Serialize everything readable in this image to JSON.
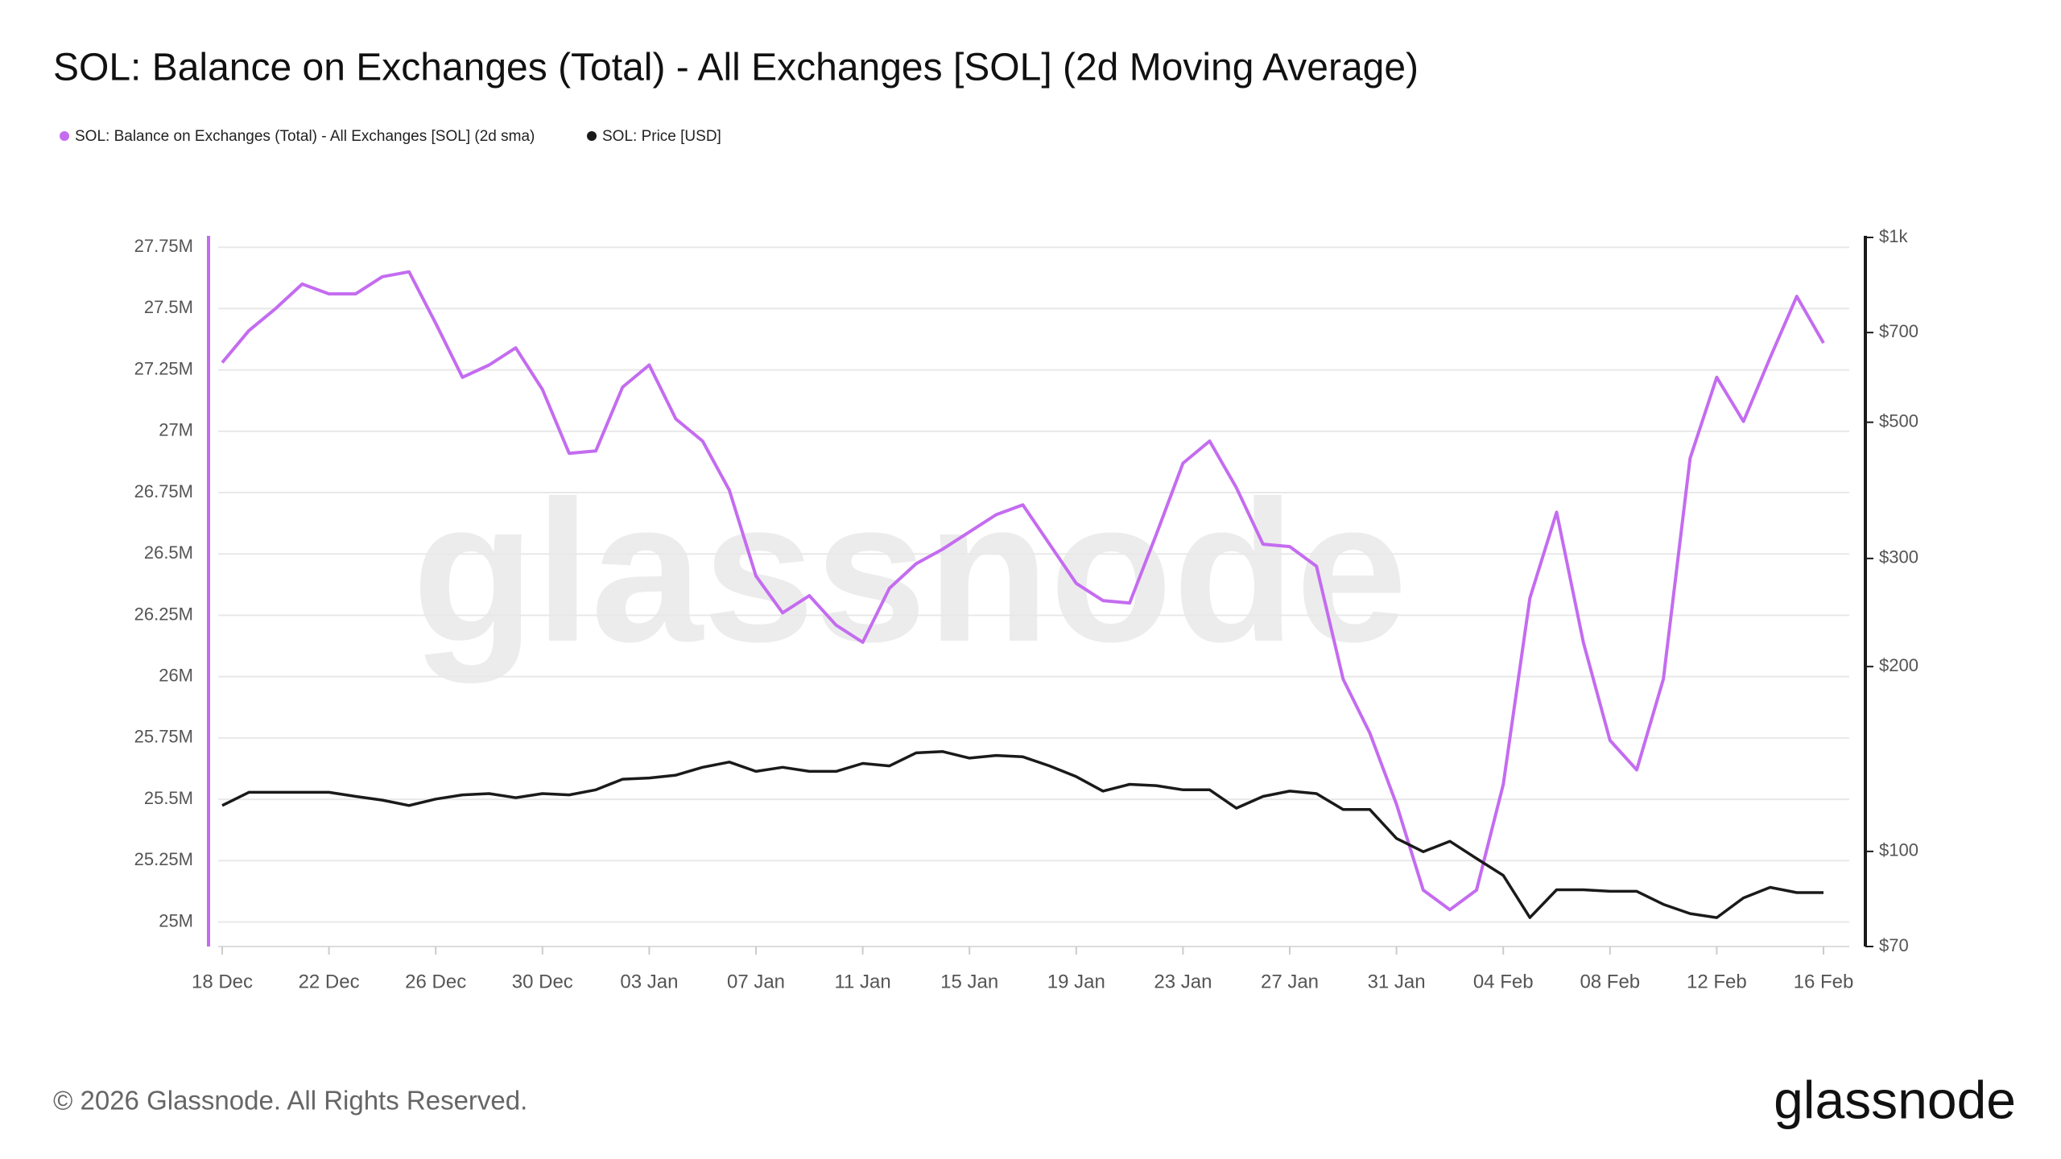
{
  "chart_data": {
    "type": "line",
    "title": "SOL: Balance on Exchanges (Total) - All Exchanges [SOL] (2d Moving Average)",
    "categories": [
      "18 Dec",
      null,
      null,
      null,
      "22 Dec",
      null,
      null,
      null,
      "26 Dec",
      null,
      null,
      null,
      "30 Dec",
      null,
      null,
      null,
      "03 Jan",
      null,
      null,
      null,
      "07 Jan",
      null,
      null,
      null,
      "11 Jan",
      null,
      null,
      null,
      "15 Jan",
      null,
      null,
      null,
      "19 Jan",
      null,
      null,
      null,
      "23 Jan",
      null,
      null,
      null,
      "27 Jan",
      null,
      null,
      null,
      "31 Jan",
      null,
      null,
      null,
      "04 Feb",
      null,
      null,
      null,
      "08 Feb",
      null,
      null,
      null,
      "12 Feb",
      null,
      null,
      null,
      "16 Feb"
    ],
    "series": [
      {
        "name": "SOL: Balance on Exchanges (Total) - All Exchanges [SOL] (2d sma)",
        "color": "#c46cf0",
        "values": [
          27280000,
          27410000,
          27500000,
          27600000,
          27560000,
          27560000,
          27630000,
          27650000,
          27440000,
          27220000,
          27270000,
          27340000,
          27170000,
          26910000,
          26920000,
          27180000,
          27270000,
          27050000,
          26960000,
          26760000,
          26410000,
          26260000,
          26330000,
          26210000,
          26140000,
          26360000,
          26460000,
          26520000,
          26590000,
          26660000,
          26700000,
          26540000,
          26380000,
          26310000,
          26300000,
          26580000,
          26870000,
          26960000,
          26770000,
          26540000,
          26530000,
          26450000,
          25990000,
          25770000,
          25480000,
          25130000,
          25050000,
          25130000,
          25560000,
          26320000,
          26670000,
          26140000,
          25740000,
          25620000,
          25990000,
          26890000,
          27220000,
          27040000,
          27300000,
          27550000,
          27360000
        ]
      },
      {
        "name": "SOL: Price [USD]",
        "color": "#1a1a1a",
        "axis": "y2",
        "values": [
          118.8,
          124.8,
          124.8,
          124.8,
          124.8,
          122.9,
          121.2,
          118.8,
          121.7,
          123.6,
          124.2,
          122.3,
          124.2,
          123.6,
          126.0,
          131.1,
          131.7,
          133.1,
          137.1,
          139.8,
          135.0,
          137.1,
          135.0,
          135.0,
          139.1,
          137.8,
          144.7,
          145.4,
          141.9,
          143.3,
          142.6,
          137.8,
          132.4,
          125.4,
          128.6,
          128.0,
          126.0,
          126.0,
          117.6,
          122.9,
          125.4,
          124.2,
          117.0,
          117.0,
          105.0,
          99.9,
          103.9,
          97.4,
          91.4,
          78.0,
          86.6,
          86.6,
          86.1,
          86.1,
          82.0,
          79.2,
          78.0,
          84.0,
          87.4,
          85.7,
          85.7
        ]
      }
    ],
    "ylim": [
      24900000,
      27790000
    ],
    "yticks": [
      {
        "value": 25000000,
        "label": "25M"
      },
      {
        "value": 25250000,
        "label": "25.25M"
      },
      {
        "value": 25500000,
        "label": "25.5M"
      },
      {
        "value": 25750000,
        "label": "25.75M"
      },
      {
        "value": 26000000,
        "label": "26M"
      },
      {
        "value": 26250000,
        "label": "26.25M"
      },
      {
        "value": 26500000,
        "label": "26.5M"
      },
      {
        "value": 26750000,
        "label": "26.75M"
      },
      {
        "value": 27000000,
        "label": "27M"
      },
      {
        "value": 27250000,
        "label": "27.25M"
      },
      {
        "value": 27500000,
        "label": "27.5M"
      },
      {
        "value": 27750000,
        "label": "27.75M"
      }
    ],
    "y2lim": [
      70,
      1000
    ],
    "y2ticks": [
      {
        "value": 70,
        "label": "$70"
      },
      {
        "value": 100,
        "label": "$100"
      },
      {
        "value": 200,
        "label": "$200"
      },
      {
        "value": 300,
        "label": "$300"
      },
      {
        "value": 500,
        "label": "$500"
      },
      {
        "value": 700,
        "label": "$700"
      },
      {
        "value": 1000,
        "label": "$1k"
      }
    ],
    "y2_log": true,
    "grid": true,
    "legend": "top-left"
  },
  "watermark": "glassnode",
  "footer": "© 2026 Glassnode. All Rights Reserved.",
  "logo": "glassnode"
}
